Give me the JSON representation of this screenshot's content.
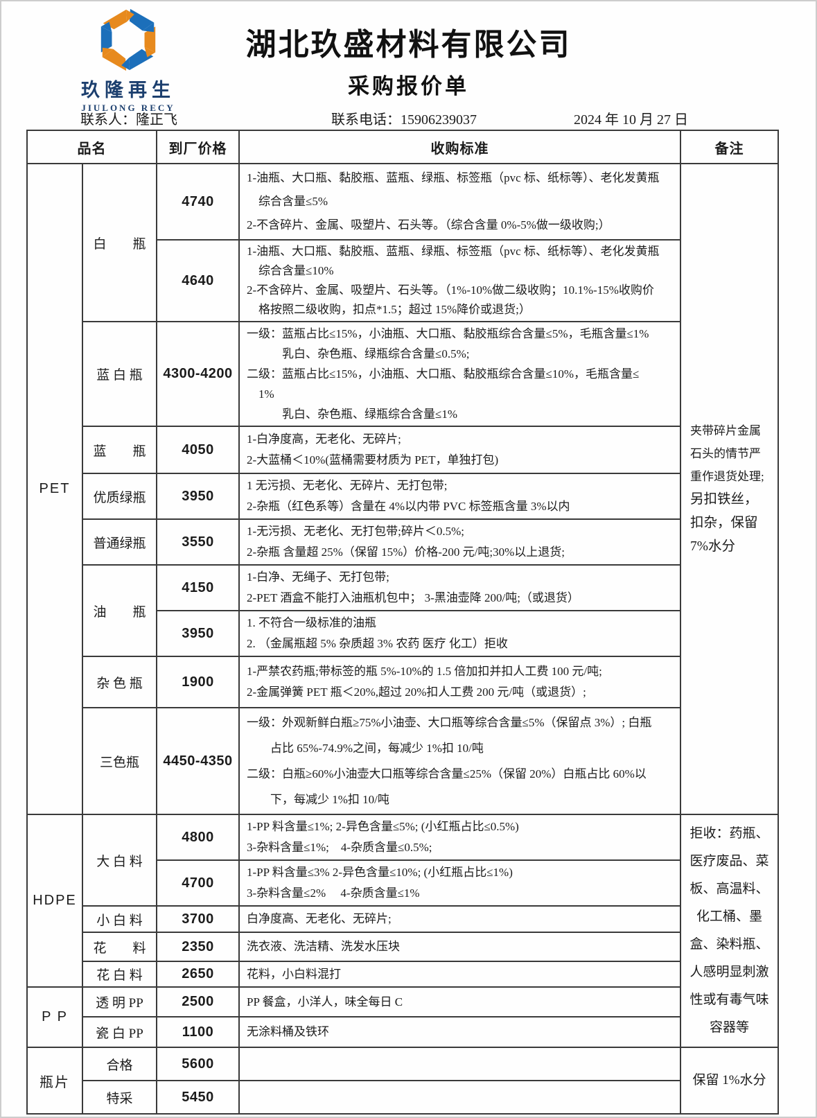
{
  "page": {
    "logo": {
      "name_zh": "玖隆再生",
      "name_en": "JIULONG RECY",
      "orange": "#E78A1E",
      "blue": "#1C6FBA",
      "navy": "#1C3F6E"
    },
    "company_name": "湖北玖盛材料有限公司",
    "doc_title": "采购报价单",
    "contact": {
      "person": "联系人：隆正飞",
      "phone": "联系电话：15906239037",
      "date": "2024 年 10 月 27 日"
    }
  },
  "table": {
    "header": {
      "product": "品名",
      "price": "到厂价格",
      "standard": "收购标准",
      "remark": "备注"
    },
    "categories": [
      {
        "label": "PET"
      },
      {
        "label": "HDPE"
      },
      {
        "label": "P P"
      },
      {
        "label": "瓶片"
      }
    ],
    "rows": [
      {
        "sub": "白　　瓶",
        "price": "4740",
        "std": [
          "1-油瓶、大口瓶、黏胶瓶、蓝瓶、绿瓶、标签瓶（pvc 标、纸标等）、老化发黄瓶",
          "　综合含量≤5%",
          "2-不含碎片、金属、吸塑片、石头等。（综合含量 0%-5%做一级收购;）"
        ]
      },
      {
        "price": "4640",
        "std": [
          "1-油瓶、大口瓶、黏胶瓶、蓝瓶、绿瓶、标签瓶（pvc 标、纸标等）、老化发黄瓶",
          "　综合含量≤10%",
          "2-不含碎片、金属、吸塑片、石头等。（1%-10%做二级收购；10.1%-15%收购价",
          "　格按照二级收购，扣点*1.5；超过 15%降价或退货;）"
        ]
      },
      {
        "sub": "蓝 白 瓶",
        "price": "4300-4200",
        "std": [
          "一级：蓝瓶占比≤15%，小油瓶、大口瓶、黏胶瓶综合含量≤5%，毛瓶含量≤1%",
          "　　　乳白、杂色瓶、绿瓶综合含量≤0.5%;",
          "二级：蓝瓶占比≤15%，小油瓶、大口瓶、黏胶瓶综合含量≤10%，毛瓶含量≤",
          "　1%",
          "　　　乳白、杂色瓶、绿瓶综合含量≤1%"
        ]
      },
      {
        "sub": "蓝　　瓶",
        "price": "4050",
        "std": [
          "1-白净度高，无老化、无碎片;",
          "2-大蓝桶＜10%(蓝桶需要材质为 PET，单独打包)"
        ]
      },
      {
        "sub": "优质绿瓶",
        "price": "3950",
        "std": [
          "1 无污损、无老化、无碎片、无打包带;",
          "2-杂瓶（红色系等）含量在 4%以内带 PVC 标签瓶含量 3%以内"
        ]
      },
      {
        "sub": "普通绿瓶",
        "price": "3550",
        "std": [
          "1-无污损、无老化、无打包带;碎片＜0.5%;",
          "2-杂瓶 含量超 25%（保留 15%）价格-200 元/吨;30%以上退货;"
        ]
      },
      {
        "sub": "油　　瓶",
        "price": "4150",
        "std": [
          "1-白净、无绳子、无打包带;",
          "2-PET 酒盒不能打入油瓶机包中；  3-黑油壶降 200/吨;（或退货）"
        ]
      },
      {
        "price": "3950",
        "std": [
          "1.  不符合一级标准的油瓶",
          "2.  （金属瓶超 5% 杂质超 3% 农药 医疗 化工）拒收"
        ]
      },
      {
        "sub": "杂 色 瓶",
        "price": "1900",
        "std": [
          "1-严禁农药瓶;带标签的瓶 5%-10%的 1.5 倍加扣并扣人工费 100 元/吨;",
          "2-金属弹簧 PET 瓶＜20%,超过 20%扣人工费 200 元/吨（或退货）;"
        ]
      },
      {
        "sub": "三色瓶",
        "price": "4450-4350",
        "std": [
          "一级：外观新鲜白瓶≥75%小油壶、大口瓶等综合含量≤5%（保留点 3%）; 白瓶",
          "　　占比 65%-74.9%之间，每减少 1%扣 10/吨",
          "二级：白瓶≥60%小油壶大口瓶等综合含量≤25%（保留 20%）白瓶占比 60%以",
          "　　下，每减少 1%扣 10/吨"
        ]
      },
      {
        "sub": "大 白 料",
        "price": "4800",
        "std": [
          "1-PP 料含量≤1%;  2-异色含量≤5%;  (小红瓶占比≤0.5%)",
          "3-杂料含量≤1%;　4-杂质含量≤0.5%;"
        ]
      },
      {
        "price": "4700",
        "std": [
          "1-PP 料含量≤3%  2-异色含量≤10%;  (小红瓶占比≤1%)",
          "3-杂料含量≤2%　 4-杂质含量≤1%"
        ]
      },
      {
        "sub": "小 白 料",
        "price": "3700",
        "std": [
          "白净度高、无老化、无碎片;"
        ]
      },
      {
        "sub": "花　　料",
        "price": "2350",
        "std": [
          "洗衣液、洗洁精、洗发水压块"
        ]
      },
      {
        "sub": "花 白 料",
        "price": "2650",
        "std": [
          "花料，小白料混打"
        ]
      },
      {
        "sub": "透 明 PP",
        "price": "2500",
        "std": [
          "PP 餐盒，小洋人，味全每日 C"
        ]
      },
      {
        "sub": "瓷 白 PP",
        "price": "1100",
        "std": [
          "无涂料桶及铁环"
        ]
      },
      {
        "sub": "合格",
        "price": "5600",
        "std": []
      },
      {
        "sub": "特采",
        "price": "5450",
        "std": []
      }
    ],
    "remarks": {
      "pet": {
        "part1": "夹带碎片金属石头的情节严重作退货处理;",
        "part2": "另扣铁丝，扣杂，保留 7%水分"
      },
      "hdpe_pp": "拒收：药瓶、医疗废品、菜板、高温料、化工桶、墨盒、染料瓶、人感明显刺激性或有毒气味容器等",
      "bottle_flake": "保留 1%水分"
    }
  }
}
